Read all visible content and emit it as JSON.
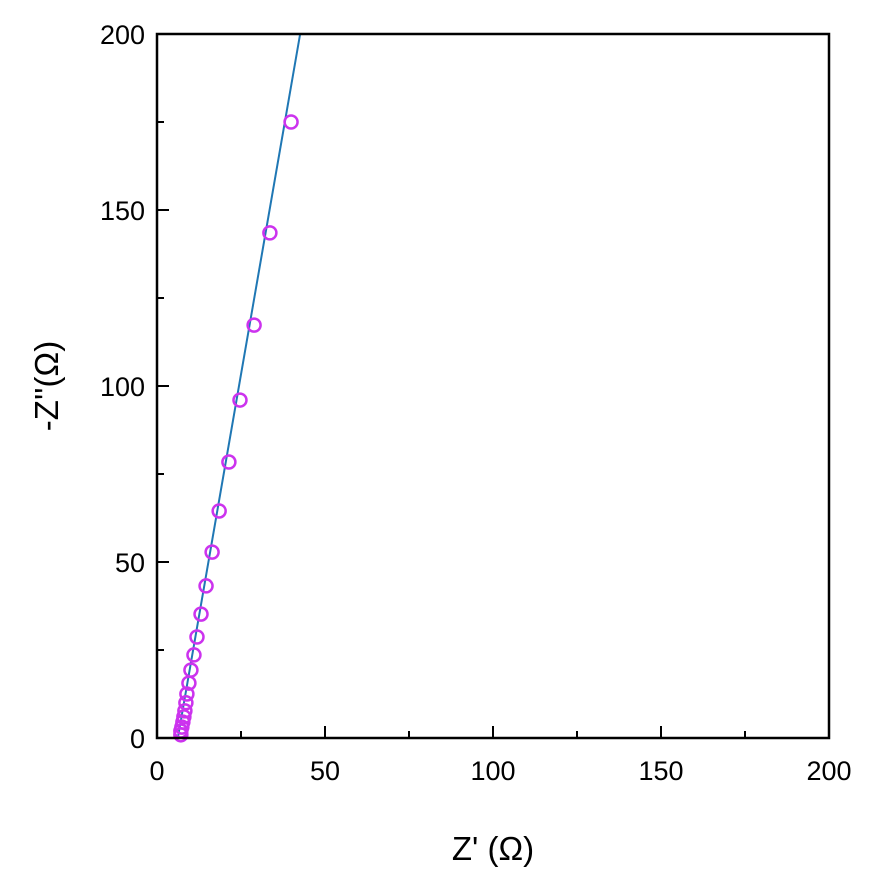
{
  "chart_data": {
    "type": "scatter",
    "title": "",
    "xlabel": "Z' (Ω)",
    "ylabel": "-Z''(Ω)",
    "xlim": [
      0,
      200
    ],
    "ylim": [
      0,
      200
    ],
    "xticks": [
      "0",
      "50",
      "100",
      "150",
      "200"
    ],
    "yticks": [
      "0",
      "50",
      "100",
      "150",
      "200"
    ],
    "grid": false,
    "legend": "none",
    "colors": {
      "marker": "#cc33ee",
      "fit_line": "#1f77b4",
      "axis": "#000000"
    },
    "series": [
      {
        "kind": "scatter",
        "marker": "open-circle",
        "x": [
          7.1,
          7.1,
          7.4,
          7.7,
          8.0,
          8.3,
          8.6,
          8.9,
          9.5,
          10.1,
          11.0,
          11.9,
          13.1,
          14.6,
          16.4,
          18.5,
          21.4,
          24.7,
          28.9,
          33.6,
          39.9
        ],
        "y": [
          0.9,
          2.0,
          3.1,
          4.5,
          6.0,
          7.7,
          10.0,
          12.5,
          15.6,
          19.3,
          23.6,
          28.7,
          35.2,
          43.2,
          52.8,
          64.5,
          78.4,
          96.0,
          117.3,
          143.5,
          175.0
        ]
      },
      {
        "kind": "line",
        "x": [
          6.2,
          42.6
        ],
        "y": [
          0,
          200
        ]
      }
    ]
  }
}
